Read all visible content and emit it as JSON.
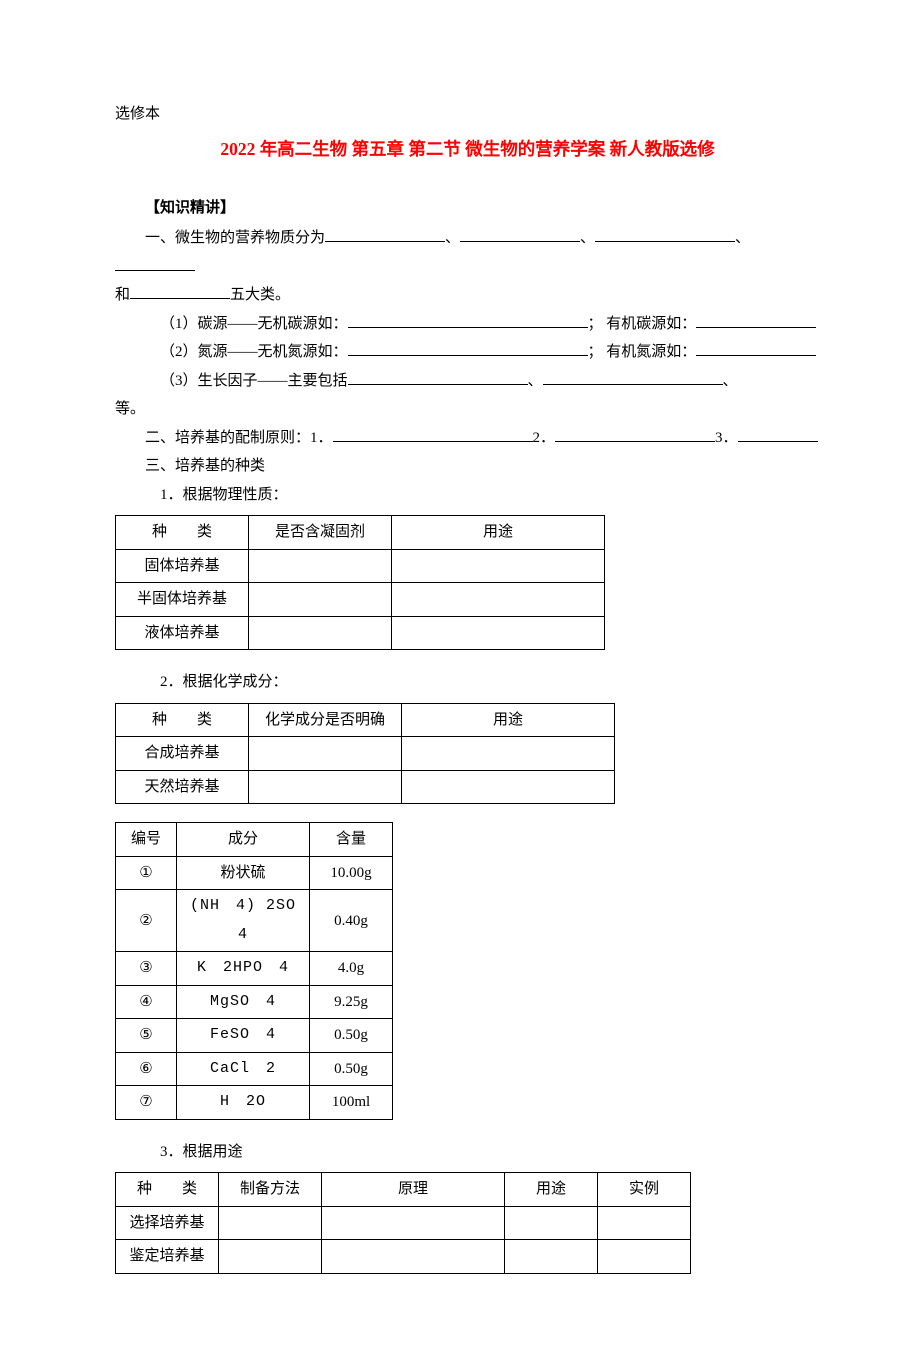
{
  "header_small": "选修本",
  "title": "2022 年高二生物 第五章 第二节 微生物的营养学案 新人教版选修",
  "knowledge_heading": "【知识精讲】",
  "body": {
    "line1_a": "一、微生物的营养物质分为",
    "line1_b": "、",
    "line1_c": "、",
    "line1_d": "、",
    "line2_a": "和",
    "line2_b": "五大类。",
    "line3_a": "（1）碳源——无机碳源如：",
    "line3_b": "； 有机碳源如：",
    "line4_a": "（2）氮源——无机氮源如：",
    "line4_b": "； 有机氮源如：",
    "line5_a": "（3）生长因子——主要包括",
    "line5_b": "、",
    "line5_c": "、",
    "line6": "等。",
    "line7_a": "二、培养基的配制原则：1．",
    "line7_b": "2．",
    "line7_c": "3．",
    "line8": "三、培养基的种类",
    "line9": "1．根据物理性质：",
    "line10": "2．根据化学成分：",
    "line11": "3．根据用途"
  },
  "table1": {
    "headers": [
      "种　　类",
      "是否含凝固剂",
      "用途"
    ],
    "rows": [
      [
        "固体培养基",
        "",
        ""
      ],
      [
        "半固体培养基",
        "",
        ""
      ],
      [
        "液体培养基",
        "",
        ""
      ]
    ]
  },
  "table2": {
    "headers": [
      "种　　类",
      "化学成分是否明确",
      "用途"
    ],
    "rows": [
      [
        "合成培养基",
        "",
        ""
      ],
      [
        "天然培养基",
        "",
        ""
      ]
    ]
  },
  "table3": {
    "headers": [
      "编号",
      "成分",
      "含量"
    ],
    "rows": [
      [
        "①",
        "粉状硫",
        "10.00g"
      ],
      [
        "②",
        "(NH　4) 2SO　4",
        "0.40g"
      ],
      [
        "③",
        "K　2HPO　4",
        "4.0g"
      ],
      [
        "④",
        "MgSO　4",
        "9.25g"
      ],
      [
        "⑤",
        "FeSO　4",
        "0.50g"
      ],
      [
        "⑥",
        "CaCl　2",
        "0.50g"
      ],
      [
        "⑦",
        "H　2O",
        "100ml"
      ]
    ]
  },
  "table4": {
    "headers": [
      "种　　类",
      "制备方法",
      "原理",
      "用途",
      "实例"
    ],
    "rows": [
      [
        "选择培养基",
        "",
        "",
        "",
        ""
      ],
      [
        "鉴定培养基",
        "",
        "",
        "",
        ""
      ]
    ]
  }
}
